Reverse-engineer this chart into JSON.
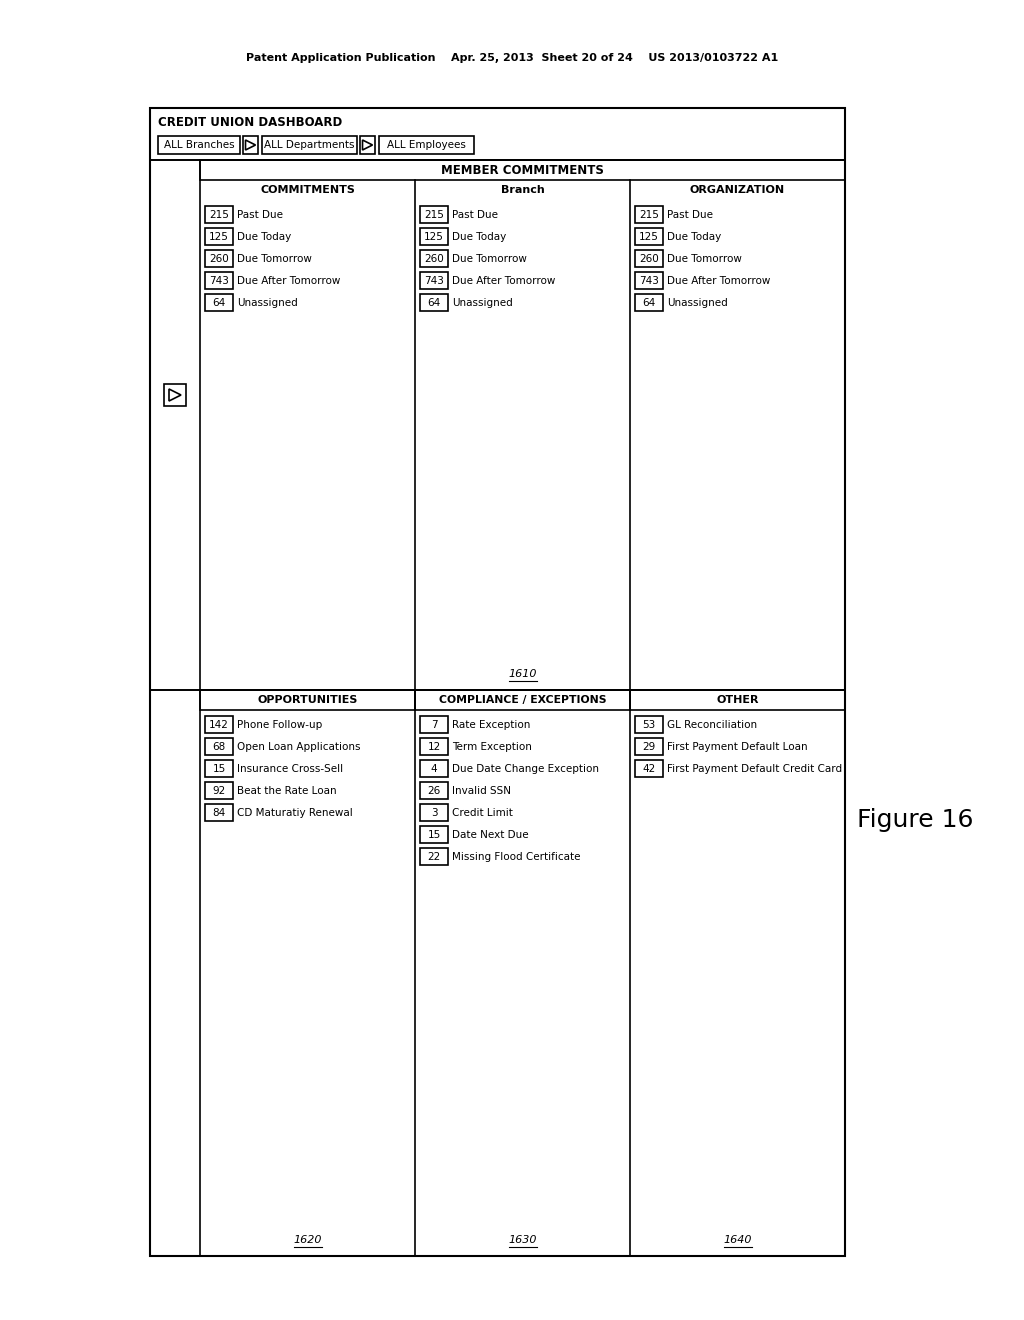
{
  "header_text": "Patent Application Publication    Apr. 25, 2013  Sheet 20 of 24    US 2013/0103722 A1",
  "figure_label": "Figure 16",
  "title": "CREDIT UNION DASHBOARD",
  "filter1_label": "ALL Branches",
  "filter2_label": "ALL Departments",
  "filter3_label": "ALL Employees",
  "section_member_commitments": "MEMBER COMMITMENTS",
  "col_commitments": "COMMITMENTS",
  "col_branch": "Branch",
  "col_organization": "ORGANIZATION",
  "commitment_rows": [
    "Past Due",
    "Due Today",
    "Due Tomorrow",
    "Due After Tomorrow",
    "Unassigned"
  ],
  "commit_values": [
    "215",
    "125",
    "260",
    "743",
    "64"
  ],
  "ref_1610": "1610",
  "section_opportunities": "OPPORTUNITIES",
  "opp_rows": [
    "Phone Follow-up",
    "Open Loan Applications",
    "Insurance Cross-Sell",
    "Beat the Rate Loan",
    "CD Maturatiy Renewal"
  ],
  "opp_values": [
    "142",
    "68",
    "15",
    "92",
    "84"
  ],
  "ref_1620": "1620",
  "section_compliance": "COMPLIANCE / EXCEPTIONS",
  "comp_rows": [
    "Rate Exception",
    "Term Exception",
    "Due Date Change Exception",
    "Invalid SSN",
    "Credit Limit",
    "Date Next Due",
    "Missing Flood Certificate"
  ],
  "comp_values": [
    "7",
    "12",
    "4",
    "26",
    "3",
    "15",
    "22"
  ],
  "ref_1630": "1630",
  "section_other": "OTHER",
  "other_rows": [
    "GL Reconciliation",
    "First Payment Default Loan",
    "First Payment Default Credit Card"
  ],
  "other_values": [
    "53",
    "29",
    "42"
  ],
  "ref_1640": "1640",
  "bg_color": "#ffffff",
  "border_color": "#000000",
  "text_color": "#000000"
}
